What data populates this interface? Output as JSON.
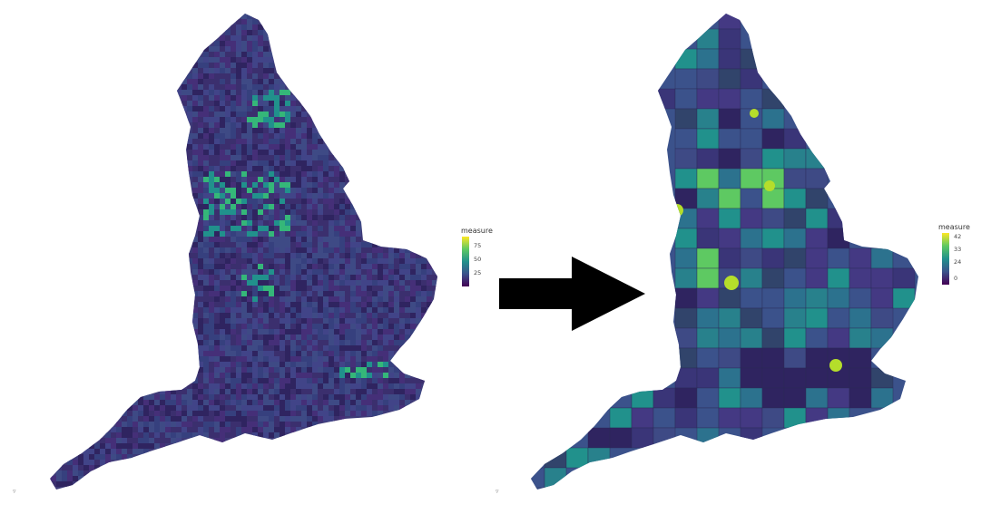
{
  "maps": [
    {
      "id": "left",
      "description_key": "fine-grained",
      "legend": {
        "title": "measure",
        "ticks": [
          {
            "label": "75",
            "value": 75
          },
          {
            "label": "50",
            "value": 50
          },
          {
            "label": "25",
            "value": 25
          }
        ],
        "min": 10,
        "max": 85
      },
      "base_color": "#3e3a78",
      "highlight_color": "#35b779"
    },
    {
      "id": "right",
      "description_key": "aggregated",
      "legend": {
        "title": "measure",
        "ticks": [
          {
            "label": "42",
            "value": 42
          },
          {
            "label": "33",
            "value": 33
          },
          {
            "label": "24",
            "value": 24
          },
          {
            "label": "0",
            "value": 0
          }
        ],
        "min": 0,
        "max": 45
      },
      "base_color": "#3b528b",
      "highlight_color": "#5ec962"
    }
  ],
  "palette": [
    "#440154",
    "#3b528b",
    "#21918c",
    "#5ec962",
    "#fde725"
  ],
  "arrow_icon": "right-arrow-icon"
}
